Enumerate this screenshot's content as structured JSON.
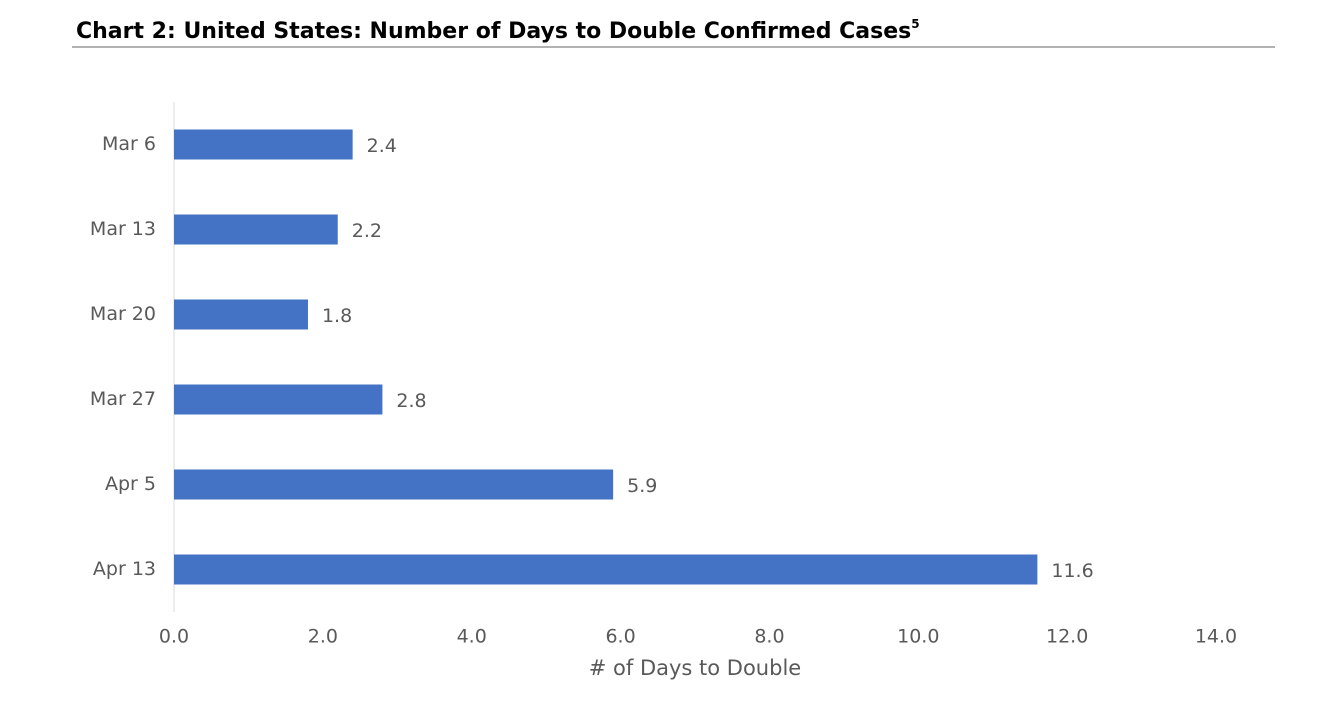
{
  "chart_data": {
    "type": "hbar",
    "title": "Chart 2: United States: Number of Days to Double Confirmed Cases",
    "title_superscript": "5",
    "xlabel": "# of Days to Double",
    "categories": [
      "Mar 6",
      "Mar 13",
      "Mar 20",
      "Mar 27",
      "Apr 5",
      "Apr 13"
    ],
    "values": [
      2.4,
      2.2,
      1.8,
      2.8,
      5.9,
      11.6
    ],
    "color": "#4472c4",
    "xlim": [
      0,
      14
    ],
    "xticks": [
      {
        "value": 0,
        "label": "0.0"
      },
      {
        "value": 2,
        "label": "2.0"
      },
      {
        "value": 4,
        "label": "4.0"
      },
      {
        "value": 6,
        "label": "6.0"
      },
      {
        "value": 8,
        "label": "8.0"
      },
      {
        "value": 10,
        "label": "10.0"
      },
      {
        "value": 12,
        "label": "12.0"
      },
      {
        "value": 14,
        "label": "14.0"
      }
    ],
    "grid": false
  }
}
